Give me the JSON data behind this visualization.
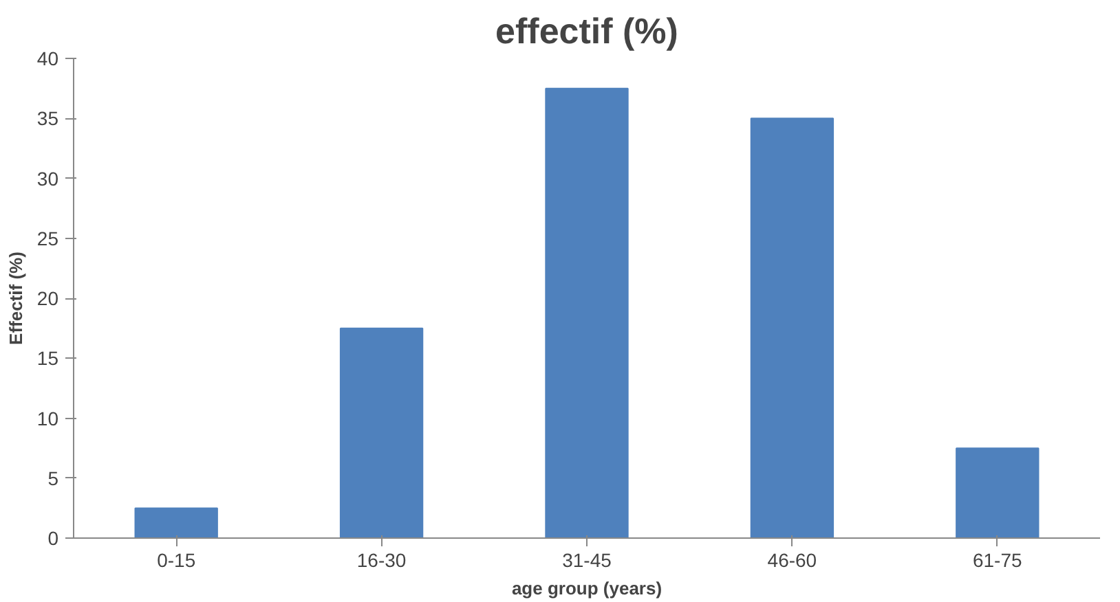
{
  "chart_data": {
    "type": "bar",
    "title": "effectif (%)",
    "xlabel": "age group (years)",
    "ylabel": "Effectif (%)",
    "categories": [
      "0-15",
      "16-30",
      "31-45",
      "46-60",
      "61-75"
    ],
    "values": [
      2.5,
      17.5,
      37.5,
      35,
      7.5
    ],
    "color": "#4f81bd",
    "ylim": [
      0,
      40
    ],
    "yticks": [
      0,
      5,
      10,
      15,
      20,
      25,
      30,
      35,
      40
    ],
    "grid": false
  }
}
